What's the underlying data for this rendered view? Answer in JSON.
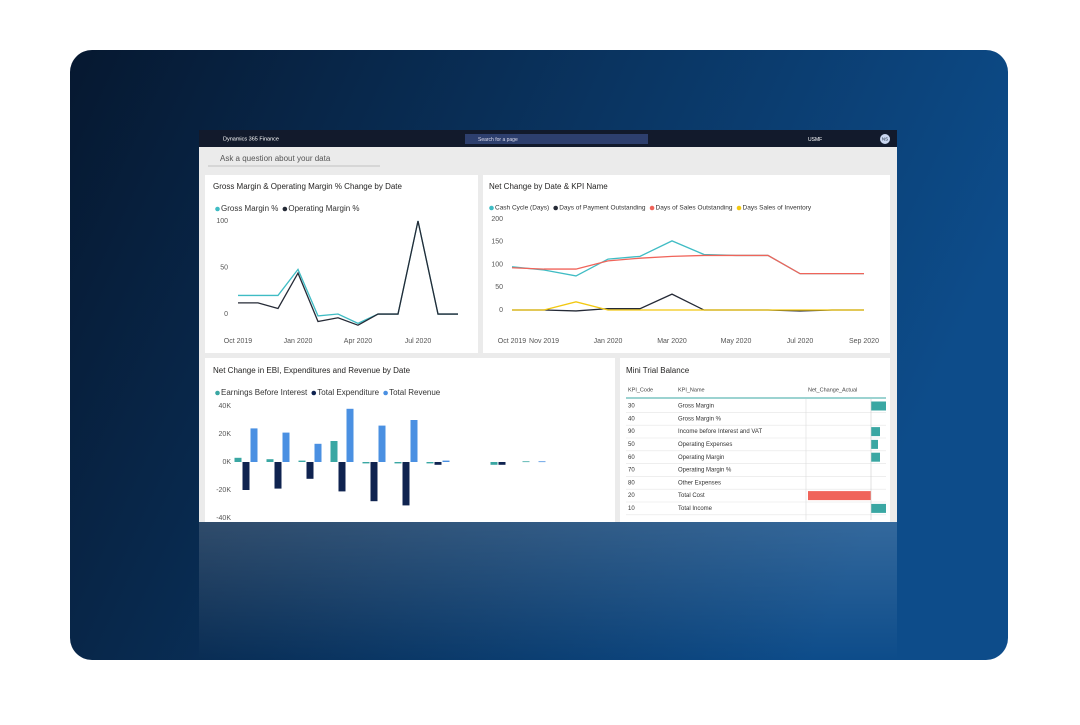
{
  "topbar": {
    "app_name": "Dynamics 365 Finance",
    "search": "Search for a page",
    "company": "USMF",
    "avatar": "NS"
  },
  "qna": "Ask a question about your data",
  "chart_data": [
    {
      "type": "line",
      "title": "Gross Margin & Operating Margin % Change by Date",
      "categories": [
        "Oct 2019",
        null,
        null,
        "Jan 2020",
        null,
        null,
        "Apr 2020",
        null,
        null,
        "Jul 2020",
        null,
        null
      ],
      "series": [
        {
          "name": "Gross Margin %",
          "color": "#3fbcc4",
          "values": [
            20,
            20,
            20,
            48,
            -2,
            0,
            -10,
            0,
            0,
            100,
            0,
            0
          ]
        },
        {
          "name": "Operating Margin %",
          "color": "#252a36",
          "values": [
            12,
            12,
            6,
            44,
            -8,
            -4,
            -12,
            0,
            0,
            100,
            0,
            0
          ]
        }
      ],
      "ylim": [
        -15,
        105
      ],
      "yticks": [
        0,
        50,
        100
      ]
    },
    {
      "type": "line",
      "title": "Net Change by Date & KPI Name",
      "categories": [
        "Oct 2019",
        "Nov 2019",
        null,
        "Jan 2020",
        null,
        "Mar 2020",
        null,
        "May 2020",
        null,
        "Jul 2020",
        null,
        "Sep 2020"
      ],
      "series": [
        {
          "name": "Cash Cycle (Days)",
          "color": "#3fbcc4",
          "values": [
            95,
            88,
            75,
            112,
            118,
            152,
            122,
            120,
            120,
            80,
            80,
            80
          ]
        },
        {
          "name": "Days of Payment Outstanding",
          "color": "#252a36",
          "values": [
            0,
            0,
            -2,
            3,
            3,
            35,
            0,
            0,
            0,
            -2,
            0,
            0
          ]
        },
        {
          "name": "Days of Sales Outstanding",
          "color": "#f0645a",
          "values": [
            93,
            90,
            90,
            108,
            114,
            118,
            120,
            120,
            120,
            80,
            80,
            80
          ]
        },
        {
          "name": "Days Sales of Inventory",
          "color": "#f2c811",
          "values": [
            0,
            0,
            18,
            0,
            0,
            0,
            0,
            0,
            0,
            0,
            0,
            0
          ]
        }
      ],
      "ylim": [
        -25,
        210
      ],
      "yticks": [
        0,
        50,
        100,
        150,
        200
      ]
    },
    {
      "type": "bar",
      "title": "Net Change in EBI, Expenditures and Revenue by Date",
      "categories": [
        null,
        null,
        null,
        null,
        null,
        null,
        null,
        null,
        null,
        null
      ],
      "series": [
        {
          "name": "Earnings Before Interest",
          "color": "#3aa7a3",
          "values": [
            3000,
            2000,
            1000,
            15000,
            -1000,
            -1000,
            -1000,
            null,
            -2000,
            500
          ]
        },
        {
          "name": "Total Expenditure",
          "color": "#0f2350",
          "values": [
            -20000,
            -19000,
            -12000,
            -21000,
            -28000,
            -31000,
            -2000,
            null,
            -2000,
            null
          ]
        },
        {
          "name": "Total Revenue",
          "color": "#4a90e2",
          "values": [
            24000,
            21000,
            13000,
            38000,
            26000,
            30000,
            1000,
            null,
            null,
            500
          ]
        }
      ],
      "ylim": [
        -42000,
        44000
      ],
      "yticks": [
        {
          "value": -40000,
          "label": "-40K"
        },
        {
          "value": -20000,
          "label": "-20K"
        },
        {
          "value": 0,
          "label": "0K"
        },
        {
          "value": 20000,
          "label": "20K"
        },
        {
          "value": 40000,
          "label": "40K"
        }
      ]
    }
  ],
  "table": {
    "title": "Mini Trial Balance",
    "columns": [
      "KPI_Code",
      "KPI_Name",
      "Net_Change_Actual"
    ],
    "kpi_codes": [
      30,
      40,
      90,
      50,
      60,
      70,
      80,
      20,
      10
    ],
    "kpi_names": [
      "Gross Margin",
      "Gross Margin %",
      "Income before Interest and VAT",
      "Operating Expenses",
      "Operating Margin",
      "Operating Margin %",
      "Other Expenses",
      "Total Cost",
      "Total Income"
    ],
    "net_change_actual": [
      15,
      0,
      9,
      7,
      9,
      0,
      0,
      -63,
      15
    ],
    "positive_color": "#3aa7a3",
    "negative_color": "#f0645a",
    "xlim": [
      -65,
      15
    ]
  }
}
